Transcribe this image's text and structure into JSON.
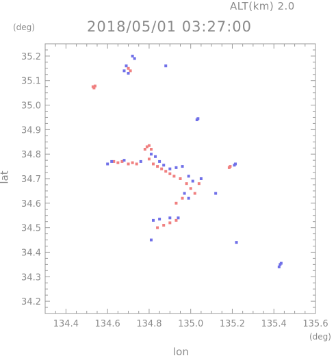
{
  "header": {
    "altitude": "ALT(km) 2.0",
    "datetime": "2018/05/01 03:27:00"
  },
  "colors": {
    "frame": "#999999",
    "positive": "#f08080",
    "positive_light": "#f7b8b8",
    "negative": "#7070e8",
    "negative_light": "#b0b0f0"
  },
  "chart_data": {
    "type": "scatter",
    "title": "2018/05/01 03:27:00",
    "xlabel": "lon",
    "ylabel": "lat",
    "xunit": "(deg)",
    "yunit": "(deg)",
    "xlim": [
      134.3,
      135.6
    ],
    "ylim": [
      34.15,
      35.25
    ],
    "xticks": [
      "134.4",
      "134.6",
      "134.8",
      "135.0",
      "135.2",
      "135.4",
      "135.6"
    ],
    "yticks": [
      "34.2",
      "34.3",
      "34.4",
      "34.5",
      "34.6",
      "34.7",
      "34.8",
      "34.9",
      "35.0",
      "35.1",
      "35.2"
    ],
    "grid": false,
    "series": [
      {
        "color": "#f08080",
        "points": [
          [
            134.53,
            35.075
          ],
          [
            134.54,
            35.078
          ],
          [
            134.535,
            35.07
          ],
          [
            134.7,
            35.15
          ],
          [
            134.71,
            35.14
          ],
          [
            134.79,
            34.83
          ],
          [
            134.8,
            34.835
          ],
          [
            134.78,
            34.82
          ],
          [
            134.81,
            34.82
          ],
          [
            134.63,
            34.77
          ],
          [
            134.65,
            34.765
          ],
          [
            134.67,
            34.77
          ],
          [
            134.7,
            34.76
          ],
          [
            134.72,
            34.765
          ],
          [
            134.74,
            34.76
          ],
          [
            134.8,
            34.78
          ],
          [
            134.82,
            34.76
          ],
          [
            134.84,
            34.75
          ],
          [
            134.86,
            34.74
          ],
          [
            134.88,
            34.73
          ],
          [
            134.9,
            34.72
          ],
          [
            134.92,
            34.71
          ],
          [
            134.95,
            34.7
          ],
          [
            134.98,
            34.68
          ],
          [
            135.0,
            34.66
          ],
          [
            135.02,
            34.64
          ],
          [
            134.96,
            34.62
          ],
          [
            134.93,
            34.6
          ],
          [
            135.04,
            34.68
          ],
          [
            134.84,
            34.5
          ],
          [
            134.87,
            34.51
          ],
          [
            134.9,
            34.52
          ],
          [
            134.93,
            34.53
          ],
          [
            135.19,
            34.75
          ],
          [
            135.185,
            34.745
          ]
        ]
      },
      {
        "color": "#7070e8",
        "points": [
          [
            134.69,
            35.16
          ],
          [
            134.72,
            35.2
          ],
          [
            134.73,
            35.19
          ],
          [
            134.7,
            35.13
          ],
          [
            134.68,
            35.14
          ],
          [
            134.88,
            35.16
          ],
          [
            135.03,
            34.94
          ],
          [
            135.035,
            34.945
          ],
          [
            134.6,
            34.76
          ],
          [
            134.62,
            34.77
          ],
          [
            134.68,
            34.775
          ],
          [
            134.76,
            34.77
          ],
          [
            134.81,
            34.8
          ],
          [
            134.83,
            34.79
          ],
          [
            134.85,
            34.77
          ],
          [
            134.87,
            34.755
          ],
          [
            134.9,
            34.74
          ],
          [
            134.93,
            34.745
          ],
          [
            134.96,
            34.75
          ],
          [
            134.99,
            34.71
          ],
          [
            135.01,
            34.69
          ],
          [
            134.97,
            34.64
          ],
          [
            134.99,
            34.62
          ],
          [
            135.05,
            34.7
          ],
          [
            135.12,
            34.64
          ],
          [
            134.82,
            34.53
          ],
          [
            134.85,
            34.535
          ],
          [
            134.9,
            34.54
          ],
          [
            134.94,
            34.54
          ],
          [
            134.81,
            34.45
          ],
          [
            135.21,
            34.755
          ],
          [
            135.215,
            34.76
          ],
          [
            135.22,
            34.44
          ],
          [
            135.43,
            34.35
          ],
          [
            135.425,
            34.34
          ],
          [
            135.435,
            34.355
          ]
        ]
      }
    ]
  }
}
